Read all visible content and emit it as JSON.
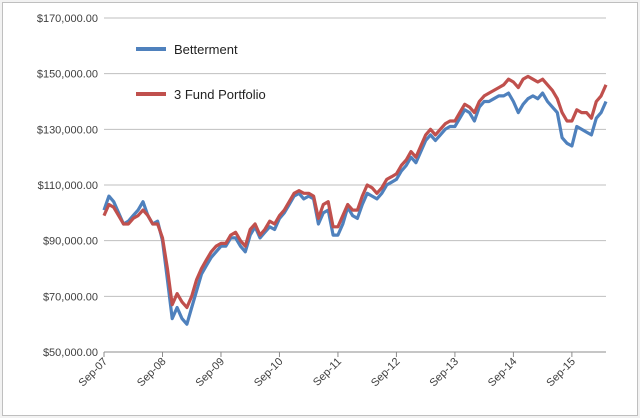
{
  "chart_data": {
    "type": "line",
    "title": "",
    "xlabel": "",
    "ylabel": "",
    "ylim": [
      50000,
      170000
    ],
    "y_ticks": [
      "$50,000.00",
      "$70,000.00",
      "$90,000.00",
      "$110,000.00",
      "$130,000.00",
      "$150,000.00",
      "$170,000.00"
    ],
    "y_tick_values": [
      50000,
      70000,
      90000,
      110000,
      130000,
      150000,
      170000
    ],
    "x_ticks": [
      "Sep-07",
      "Sep-08",
      "Sep-09",
      "Sep-10",
      "Sep-11",
      "Sep-12",
      "Sep-13",
      "Sep-14",
      "Sep-15"
    ],
    "x": [
      "Sep-07",
      "Oct-07",
      "Nov-07",
      "Dec-07",
      "Jan-08",
      "Feb-08",
      "Mar-08",
      "Apr-08",
      "May-08",
      "Jun-08",
      "Jul-08",
      "Aug-08",
      "Sep-08",
      "Oct-08",
      "Nov-08",
      "Dec-08",
      "Jan-09",
      "Feb-09",
      "Mar-09",
      "Apr-09",
      "May-09",
      "Jun-09",
      "Jul-09",
      "Aug-09",
      "Sep-09",
      "Oct-09",
      "Nov-09",
      "Dec-09",
      "Jan-10",
      "Feb-10",
      "Mar-10",
      "Apr-10",
      "May-10",
      "Jun-10",
      "Jul-10",
      "Aug-10",
      "Sep-10",
      "Oct-10",
      "Nov-10",
      "Dec-10",
      "Jan-11",
      "Feb-11",
      "Mar-11",
      "Apr-11",
      "May-11",
      "Jun-11",
      "Jul-11",
      "Aug-11",
      "Sep-11",
      "Oct-11",
      "Nov-11",
      "Dec-11",
      "Jan-12",
      "Feb-12",
      "Mar-12",
      "Apr-12",
      "May-12",
      "Jun-12",
      "Jul-12",
      "Aug-12",
      "Sep-12",
      "Oct-12",
      "Nov-12",
      "Dec-12",
      "Jan-13",
      "Feb-13",
      "Mar-13",
      "Apr-13",
      "May-13",
      "Jun-13",
      "Jul-13",
      "Aug-13",
      "Sep-13",
      "Oct-13",
      "Nov-13",
      "Dec-13",
      "Jan-14",
      "Feb-14",
      "Mar-14",
      "Apr-14",
      "May-14",
      "Jun-14",
      "Jul-14",
      "Aug-14",
      "Sep-14",
      "Oct-14",
      "Nov-14",
      "Dec-14",
      "Jan-15",
      "Feb-15",
      "Mar-15",
      "Apr-15",
      "May-15",
      "Jun-15",
      "Jul-15",
      "Aug-15",
      "Sep-15",
      "Oct-15",
      "Nov-15",
      "Dec-15",
      "Jan-16",
      "Feb-16",
      "Mar-16",
      "Apr-16"
    ],
    "series": [
      {
        "name": "Betterment",
        "color": "#4f81bd",
        "values": [
          101000,
          106000,
          104000,
          100000,
          96000,
          97000,
          99000,
          101000,
          104000,
          99000,
          96000,
          97000,
          90000,
          76000,
          62000,
          66000,
          62000,
          60000,
          66000,
          72000,
          78000,
          81000,
          84000,
          86000,
          88000,
          88000,
          91000,
          91000,
          88000,
          86000,
          92000,
          95000,
          91000,
          93000,
          95000,
          94000,
          98000,
          100000,
          103000,
          106000,
          107000,
          105000,
          106000,
          105000,
          96000,
          100000,
          101000,
          92000,
          92000,
          96000,
          102000,
          99000,
          98000,
          103000,
          107000,
          106000,
          105000,
          107000,
          110000,
          111000,
          112000,
          115000,
          117000,
          120000,
          118000,
          122000,
          126000,
          128000,
          126000,
          128000,
          130000,
          131000,
          131000,
          134000,
          137000,
          136000,
          133000,
          138000,
          140000,
          140000,
          141000,
          142000,
          142000,
          143000,
          140000,
          136000,
          139000,
          141000,
          142000,
          141000,
          143000,
          140000,
          138000,
          136000,
          127000,
          125000,
          124000,
          131000,
          130000,
          129000,
          128000,
          134000,
          136000,
          140000
        ]
      },
      {
        "name": "3 Fund Portfolio",
        "color": "#c0504d",
        "values": [
          99000,
          103000,
          102000,
          99000,
          96000,
          96000,
          98000,
          99000,
          101000,
          99000,
          96000,
          96000,
          91000,
          80000,
          67000,
          71000,
          68000,
          66000,
          70000,
          76000,
          80000,
          83000,
          86000,
          88000,
          89000,
          89000,
          92000,
          93000,
          90000,
          88000,
          94000,
          96000,
          92000,
          94000,
          97000,
          96000,
          99000,
          101000,
          104000,
          107000,
          108000,
          107000,
          107000,
          106000,
          98000,
          103000,
          104000,
          95000,
          95000,
          99000,
          103000,
          101000,
          101000,
          106000,
          110000,
          109000,
          107000,
          109000,
          112000,
          113000,
          114000,
          117000,
          119000,
          122000,
          120000,
          124000,
          128000,
          130000,
          128000,
          130000,
          132000,
          133000,
          133000,
          136000,
          139000,
          138000,
          136000,
          140000,
          142000,
          143000,
          144000,
          145000,
          146000,
          148000,
          147000,
          145000,
          148000,
          149000,
          148000,
          147000,
          148000,
          146000,
          144000,
          141000,
          136000,
          133000,
          133000,
          137000,
          136000,
          136000,
          134000,
          140000,
          142000,
          146000
        ]
      }
    ],
    "legend": "top-left inside plot",
    "grid": "horizontal"
  }
}
